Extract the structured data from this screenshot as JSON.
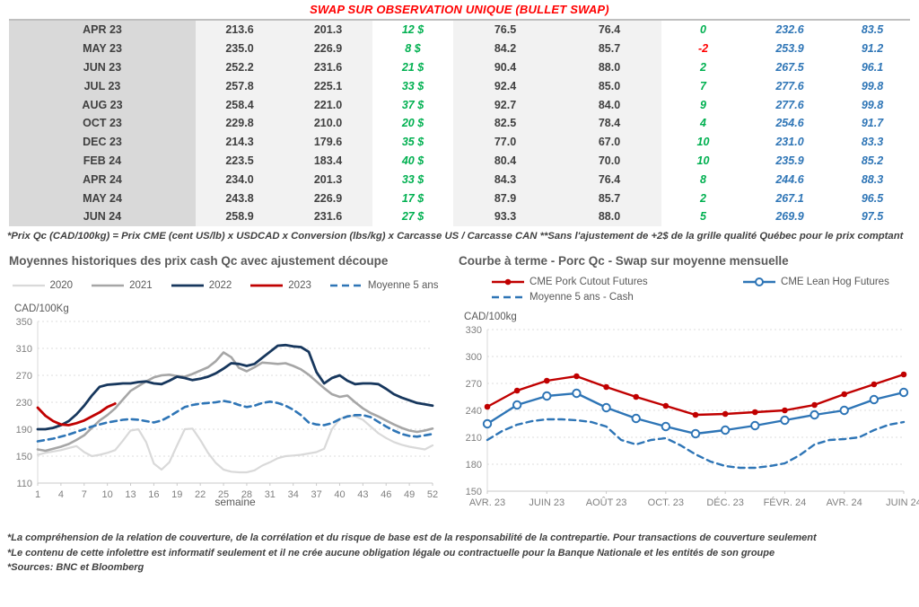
{
  "table": {
    "title": "SWAP SUR OBSERVATION UNIQUE (BULLET SWAP)",
    "rows": [
      {
        "cells": [
          "APR 23",
          "213.6",
          "201.3",
          "12 $",
          "76.5",
          "76.4",
          "0",
          "232.6",
          "83.5"
        ]
      },
      {
        "cells": [
          "MAY 23",
          "235.0",
          "226.9",
          "8 $",
          "84.2",
          "85.7",
          "-2",
          "253.9",
          "91.2"
        ]
      },
      {
        "cells": [
          "JUN 23",
          "252.2",
          "231.6",
          "21 $",
          "90.4",
          "88.0",
          "2",
          "267.5",
          "96.1"
        ]
      },
      {
        "cells": [
          "JUL 23",
          "257.8",
          "225.1",
          "33 $",
          "92.4",
          "85.0",
          "7",
          "277.6",
          "99.8"
        ]
      },
      {
        "cells": [
          "AUG 23",
          "258.4",
          "221.0",
          "37 $",
          "92.7",
          "84.0",
          "9",
          "277.6",
          "99.8"
        ]
      },
      {
        "cells": [
          "OCT 23",
          "229.8",
          "210.0",
          "20 $",
          "82.5",
          "78.4",
          "4",
          "254.6",
          "91.7"
        ]
      },
      {
        "cells": [
          "DEC 23",
          "214.3",
          "179.6",
          "35 $",
          "77.0",
          "67.0",
          "10",
          "231.0",
          "83.3"
        ]
      },
      {
        "cells": [
          "FEB 24",
          "223.5",
          "183.4",
          "40 $",
          "80.4",
          "70.0",
          "10",
          "235.9",
          "85.2"
        ]
      },
      {
        "cells": [
          "APR 24",
          "234.0",
          "201.3",
          "33 $",
          "84.3",
          "76.4",
          "8",
          "244.6",
          "88.3"
        ]
      },
      {
        "cells": [
          "MAY 24",
          "243.8",
          "226.9",
          "17 $",
          "87.9",
          "85.7",
          "2",
          "267.1",
          "96.5"
        ]
      },
      {
        "cells": [
          "JUN 24",
          "258.9",
          "231.6",
          "27 $",
          "93.3",
          "88.0",
          "5",
          "269.9",
          "97.5"
        ]
      }
    ],
    "footnote": "*Prix Qc (CAD/100kg) = Prix CME (cent US/lb) x USDCAD x Conversion (lbs/kg) x Carcasse US / Carcasse CAN **Sans l'ajustement de +2$ de la grille qualité Québec pour le prix comptant"
  },
  "colors": {
    "title_red": "#ff0000",
    "positive_green": "#00b050",
    "negative_red": "#ff0000",
    "forward_blue": "#2e75b6",
    "gray_2020": "#d9d9d9",
    "gray_2021": "#a6a6a6",
    "navy_2022": "#17375d",
    "red_2023": "#c00000",
    "steel_blue": "#2e75b6"
  },
  "chart_data": [
    {
      "type": "line",
      "title": "Moyennes historiques des prix cash Qc avec ajustement découpe",
      "unit": "CAD/100Kg",
      "xlabel": "semaine",
      "ylim": [
        110,
        350
      ],
      "ystep": 40,
      "xlim": [
        1,
        52
      ],
      "grid": true,
      "legend_position": "top",
      "xticks": [
        1,
        4,
        7,
        10,
        13,
        16,
        19,
        22,
        25,
        28,
        31,
        34,
        37,
        40,
        43,
        46,
        49,
        52
      ],
      "series": [
        {
          "name": "2020",
          "color": "#d9d9d9",
          "width": 2.2,
          "values": [
            152,
            155,
            157,
            159,
            162,
            165,
            156,
            150,
            152,
            155,
            159,
            173,
            188,
            190,
            171,
            139,
            130,
            141,
            166,
            190,
            191,
            174,
            155,
            140,
            130,
            127,
            126,
            126,
            129,
            136,
            141,
            147,
            150,
            151,
            152,
            154,
            156,
            161,
            190,
            205,
            210,
            209,
            204,
            194,
            184,
            177,
            171,
            167,
            164,
            162,
            160,
            166
          ]
        },
        {
          "name": "2021",
          "color": "#a6a6a6",
          "width": 2.6,
          "values": [
            160,
            158,
            161,
            164,
            168,
            174,
            181,
            192,
            203,
            211,
            221,
            234,
            247,
            254,
            261,
            267,
            270,
            271,
            269,
            268,
            272,
            277,
            282,
            291,
            304,
            297,
            281,
            276,
            282,
            289,
            288,
            287,
            288,
            284,
            279,
            271,
            261,
            251,
            242,
            238,
            240,
            230,
            221,
            214,
            209,
            203,
            197,
            192,
            188,
            186,
            188,
            191
          ]
        },
        {
          "name": "2022",
          "color": "#17375d",
          "width": 2.8,
          "values": [
            190,
            190,
            192,
            196,
            202,
            212,
            225,
            240,
            253,
            256,
            257,
            258,
            258,
            260,
            261,
            258,
            257,
            262,
            268,
            266,
            263,
            265,
            268,
            273,
            280,
            288,
            287,
            284,
            287,
            296,
            305,
            314,
            315,
            313,
            312,
            305,
            275,
            258,
            266,
            270,
            262,
            257,
            258,
            258,
            257,
            250,
            242,
            237,
            233,
            229,
            227,
            225
          ]
        },
        {
          "name": "2023",
          "color": "#c00000",
          "width": 2.8,
          "x_start": 1,
          "values": [
            222,
            210,
            202,
            197,
            196,
            199,
            203,
            209,
            215,
            223,
            228
          ]
        },
        {
          "name": "Moyenne 5 ans",
          "color": "#2e75b6",
          "width": 2.6,
          "dash": "7 5",
          "values": [
            172,
            174,
            176,
            179,
            182,
            186,
            190,
            194,
            197,
            200,
            202,
            204,
            205,
            204,
            202,
            200,
            203,
            209,
            216,
            223,
            226,
            228,
            229,
            230,
            232,
            230,
            226,
            223,
            225,
            229,
            231,
            229,
            225,
            219,
            211,
            200,
            197,
            196,
            199,
            205,
            209,
            211,
            211,
            208,
            201,
            194,
            188,
            183,
            180,
            179,
            181,
            183
          ]
        }
      ]
    },
    {
      "type": "line",
      "title": "Courbe à terme - Porc Qc - Swap sur moyenne mensuelle",
      "unit": "CAD/100kg",
      "xlabel": "",
      "ylim": [
        150,
        330
      ],
      "ystep": 30,
      "xlim": [
        0,
        14
      ],
      "grid": true,
      "legend_position": "top",
      "xticks": [
        {
          "x": 0,
          "label": "AVR. 23"
        },
        {
          "x": 2,
          "label": "JUIN 23"
        },
        {
          "x": 4,
          "label": "AOÛT 23"
        },
        {
          "x": 6,
          "label": "OCT. 23"
        },
        {
          "x": 8,
          "label": "DÉC. 23"
        },
        {
          "x": 10,
          "label": "FÉVR. 24"
        },
        {
          "x": 12,
          "label": "AVR. 24"
        },
        {
          "x": 14,
          "label": "JUIN 24"
        }
      ],
      "series": [
        {
          "name": "CME Pork Cutout Futures",
          "color": "#c00000",
          "width": 2.4,
          "marker": "filled",
          "values": [
            244,
            262,
            273,
            278,
            266,
            255,
            245,
            235,
            236,
            238,
            240,
            246,
            258,
            269,
            280
          ]
        },
        {
          "name": "CME Lean Hog Futures",
          "color": "#2e75b6",
          "width": 2.4,
          "marker": "open",
          "values": [
            225,
            246,
            256,
            259,
            243,
            231,
            222,
            214,
            218,
            223,
            229,
            235,
            240,
            252,
            260
          ]
        },
        {
          "name": "Moyenne 5 ans - Cash",
          "color": "#2e75b6",
          "width": 2.4,
          "dash": "7 5",
          "dx": 0.5,
          "values": [
            207,
            217,
            224,
            228,
            230,
            230,
            229,
            227,
            222,
            207,
            202,
            207,
            209,
            201,
            191,
            183,
            178,
            176,
            176,
            178,
            181,
            190,
            202,
            207,
            208,
            210,
            218,
            224,
            227
          ]
        }
      ]
    }
  ],
  "footnotes": [
    "*La compréhension de la relation de couverture, de la corrélation et du risque de base est de la responsabilité de la contrepartie. Pour transactions de couverture seulement",
    "*Le contenu de cette infolettre est informatif seulement et il ne crée aucune obligation légale ou contractuelle pour la Banque Nationale et les entités de son groupe",
    "*Sources: BNC et Bloomberg"
  ]
}
